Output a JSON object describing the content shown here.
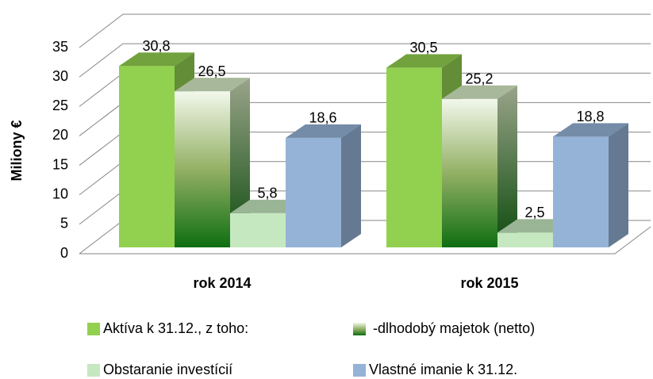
{
  "chart_data": {
    "type": "bar3d",
    "categories": [
      "rok 2014",
      "rok 2015"
    ],
    "y_label": "Miliony  €",
    "ylim": [
      0,
      35
    ],
    "yticks": [
      0,
      5,
      10,
      15,
      20,
      25,
      30,
      35
    ],
    "grid": true,
    "series": [
      {
        "name": "Aktíva k 31.12., z toho:",
        "color": "#92d050",
        "values": [
          30.8,
          30.5
        ],
        "value_labels": [
          "30,8",
          "30,5"
        ]
      },
      {
        "name": " -dlhodobý majetok (netto)",
        "color": "#1a7a1a",
        "values": [
          26.5,
          25.2
        ],
        "value_labels": [
          "26,5",
          "25,2"
        ]
      },
      {
        "name": "Obstaranie investícií",
        "color": "#c6e8c0",
        "values": [
          5.8,
          2.5
        ],
        "value_labels": [
          "5,8",
          "2,5"
        ]
      },
      {
        "name": "Vlastné imanie k 31.12.",
        "color": "#95b3d7",
        "values": [
          18.6,
          18.8
        ],
        "value_labels": [
          "18,6",
          "18,8"
        ]
      }
    ],
    "legend": "bottom"
  }
}
